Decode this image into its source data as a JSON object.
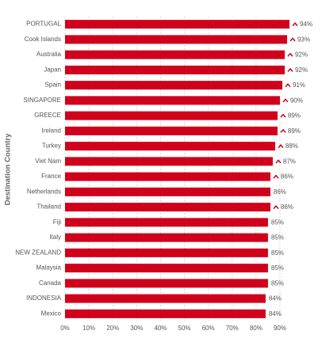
{
  "chart_data": {
    "type": "hbar",
    "y_axis_label": "Destination Country",
    "categories": [
      "PORTUGAL",
      "Cook Islands",
      "Australia",
      "Japan",
      "Spain",
      "SINGAPORE",
      "GREECE",
      "Ireland",
      "Turkey",
      "Viet Nam",
      "France",
      "Netherlands",
      "Thailand",
      "Fiji",
      "Italy",
      "NEW ZEALAND",
      "Malaysia",
      "Canada",
      "INDONESIA",
      "Mexico"
    ],
    "values": [
      94,
      93,
      92,
      92,
      91,
      90,
      89,
      89,
      88,
      87,
      86,
      86,
      86,
      85,
      85,
      85,
      85,
      85,
      84,
      84
    ],
    "value_labels": [
      "94%",
      "93%",
      "92%",
      "92%",
      "91%",
      "90%",
      "89%",
      "89%",
      "88%",
      "87%",
      "86%",
      "86%",
      "86%",
      "85%",
      "85%",
      "85%",
      "85%",
      "85%",
      "84%",
      "84%"
    ],
    "trend_up": [
      true,
      true,
      true,
      true,
      true,
      true,
      true,
      true,
      true,
      true,
      true,
      false,
      true,
      false,
      false,
      false,
      false,
      false,
      false,
      false
    ],
    "color": "#d0021b",
    "xlim": [
      0,
      97
    ],
    "xticks": [
      {
        "value": 0,
        "label": "0%"
      },
      {
        "value": 10,
        "label": "10%"
      },
      {
        "value": 20,
        "label": "20%"
      },
      {
        "value": 30,
        "label": "30%"
      },
      {
        "value": 40,
        "label": "40%"
      },
      {
        "value": 50,
        "label": "50%"
      },
      {
        "value": 60,
        "label": "60%"
      },
      {
        "value": 70,
        "label": "70%"
      },
      {
        "value": 80,
        "label": "80%"
      },
      {
        "value": 90,
        "label": "90%"
      }
    ],
    "grid": true
  }
}
